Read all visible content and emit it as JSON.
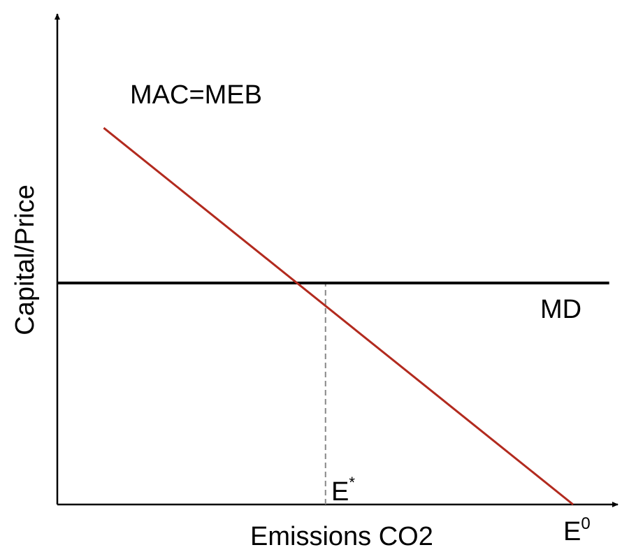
{
  "chart_data": {
    "type": "line",
    "xlabel": "Emissions CO2",
    "ylabel": "Capital/Price",
    "x_tick_labels": [
      {
        "base": "E",
        "sup": "*",
        "position": "E_star"
      },
      {
        "base": "E",
        "sup": "0",
        "position": "E_zero"
      }
    ],
    "series": [
      {
        "name": "MAC=MEB",
        "color": "#b22a1e",
        "points": [
          {
            "x": 0.09,
            "y": 0.85
          },
          {
            "x": 1.0,
            "y": 0.0
          }
        ]
      },
      {
        "name": "MD",
        "color": "#000000",
        "points": [
          {
            "x": 0.0,
            "y": 0.5
          },
          {
            "x": 1.07,
            "y": 0.5
          }
        ]
      }
    ],
    "reference_lines": [
      {
        "kind": "vertical-dashed",
        "x": 0.52,
        "from_y": 0.0,
        "to_y": 0.5,
        "color": "#888888"
      }
    ],
    "xlim": [
      0,
      1.07
    ],
    "ylim": [
      0,
      1.0
    ],
    "grid": false,
    "legend": "none"
  }
}
